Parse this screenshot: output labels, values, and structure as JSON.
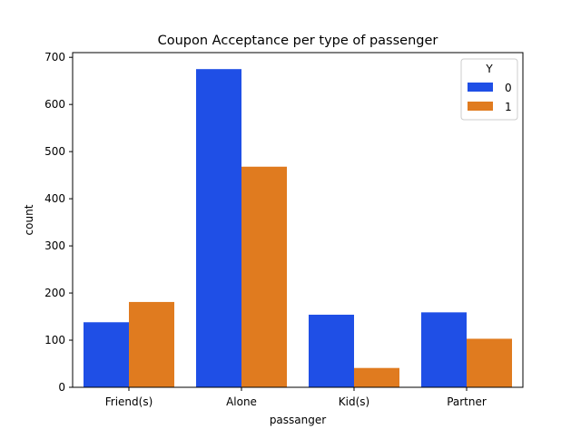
{
  "chart_data": {
    "type": "bar",
    "title": "Coupon Acceptance per type of passenger",
    "xlabel": "passanger",
    "ylabel": "count",
    "categories": [
      "Friend(s)",
      "Alone",
      "Kid(s)",
      "Partner"
    ],
    "ylim": [
      0,
      710
    ],
    "yticks": [
      0,
      100,
      200,
      300,
      400,
      500,
      600,
      700
    ],
    "grid": false,
    "legend": {
      "title": "Y",
      "placement": "top-right"
    },
    "series": [
      {
        "name": "0",
        "color": "#1f4fe6",
        "values": [
          138,
          675,
          154,
          159
        ]
      },
      {
        "name": "1",
        "color": "#e07b1f",
        "values": [
          181,
          468,
          41,
          103
        ]
      }
    ]
  }
}
